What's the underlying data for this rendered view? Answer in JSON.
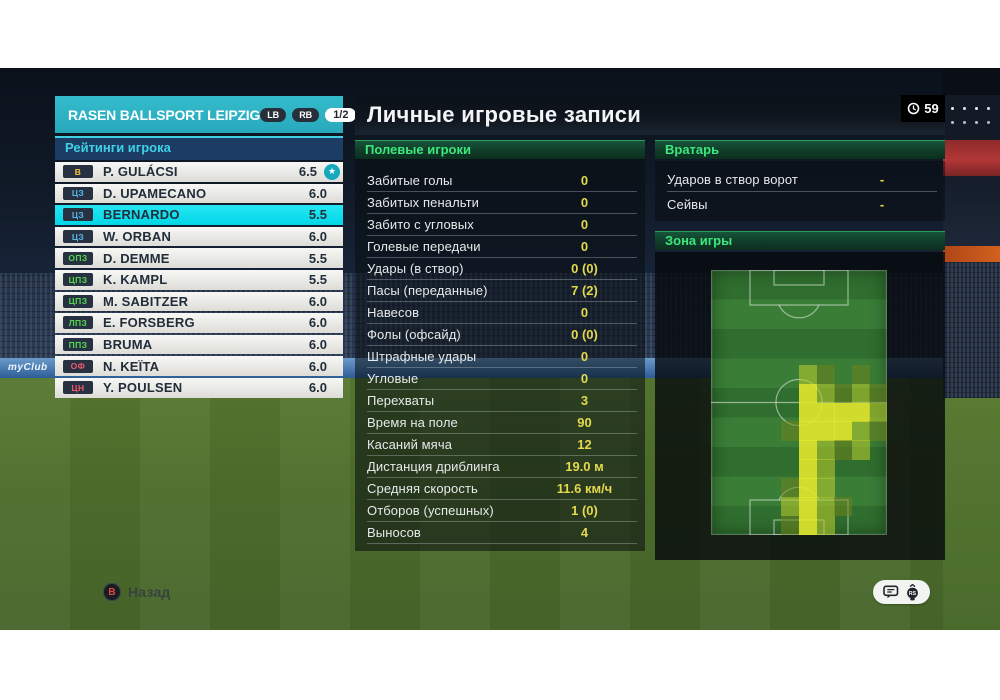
{
  "team_header": {
    "name": "RASEN BALLSPORT LEIPZIG",
    "prev_button": "LB",
    "next_button": "RB",
    "page_indicator": "1/2"
  },
  "ratings_panel": {
    "title": "Рейтинги игрока",
    "players": [
      {
        "pos": "В",
        "pos_color": "#f5c842",
        "name": "P. GULÁCSI",
        "rating": "6.5",
        "star": true
      },
      {
        "pos": "ЦЗ",
        "pos_color": "#56b8e8",
        "name": "D. UPAMECANO",
        "rating": "6.0"
      },
      {
        "pos": "ЦЗ",
        "pos_color": "#56b8e8",
        "name": "BERNARDO",
        "rating": "5.5",
        "selected": true
      },
      {
        "pos": "ЦЗ",
        "pos_color": "#56b8e8",
        "name": "W. ORBAN",
        "rating": "6.0"
      },
      {
        "pos": "ОПЗ",
        "pos_color": "#55d84e",
        "name": "D. DEMME",
        "rating": "5.5"
      },
      {
        "pos": "ЦПЗ",
        "pos_color": "#55d84e",
        "name": "K. KAMPL",
        "rating": "5.5"
      },
      {
        "pos": "ЦПЗ",
        "pos_color": "#55d84e",
        "name": "M. SABITZER",
        "rating": "6.0"
      },
      {
        "pos": "ЛПЗ",
        "pos_color": "#55d84e",
        "name": "E. FORSBERG",
        "rating": "6.0"
      },
      {
        "pos": "ППЗ",
        "pos_color": "#55d84e",
        "name": "BRUMA",
        "rating": "6.0"
      },
      {
        "pos": "ОФ",
        "pos_color": "#f2586e",
        "name": "N. KEÏTA",
        "rating": "6.0"
      },
      {
        "pos": "ЦН",
        "pos_color": "#f2586e",
        "name": "Y. POULSEN",
        "rating": "6.0"
      }
    ]
  },
  "screen": {
    "title": "Личные игровые записи",
    "match_minute": "59"
  },
  "field_stats": {
    "title": "Полевые игроки",
    "rows": [
      {
        "label": "Забитые голы",
        "value": "0"
      },
      {
        "label": "Забитых пенальти",
        "value": "0"
      },
      {
        "label": "Забито с угловых",
        "value": "0"
      },
      {
        "label": "Голевые передачи",
        "value": "0"
      },
      {
        "label": "Удары (в створ)",
        "value": "0 (0)"
      },
      {
        "label": "Пасы (переданные)",
        "value": "7 (2)"
      },
      {
        "label": "Навесов",
        "value": "0"
      },
      {
        "label": "Фолы (офсайд)",
        "value": "0 (0)"
      },
      {
        "label": "Штрафные удары",
        "value": "0"
      },
      {
        "label": "Угловые",
        "value": "0"
      },
      {
        "label": "Перехваты",
        "value": "3"
      },
      {
        "label": "Время на поле",
        "value": "90"
      },
      {
        "label": "Касаний мяча",
        "value": "12"
      },
      {
        "label": "Дистанция дриблинга",
        "value": "19.0 м"
      },
      {
        "label": "Средняя скорость",
        "value": "11.6 км/ч"
      },
      {
        "label": "Отборов (успешных)",
        "value": "1 (0)"
      },
      {
        "label": "Выносов",
        "value": "4"
      }
    ]
  },
  "goalkeeper_stats": {
    "title": "Вратарь",
    "rows": [
      {
        "label": "Ударов в створ ворот",
        "value": "-"
      },
      {
        "label": "Сейвы",
        "value": "-"
      }
    ]
  },
  "zone": {
    "title": "Зона игры",
    "heatmap_grid": {
      "cols": 10,
      "rows": 14
    },
    "heatmap_cells": [
      {
        "c": 5,
        "r": 5,
        "v": 2
      },
      {
        "c": 6,
        "r": 5,
        "v": 1
      },
      {
        "c": 8,
        "r": 5,
        "v": 1
      },
      {
        "c": 5,
        "r": 6,
        "v": 3
      },
      {
        "c": 6,
        "r": 6,
        "v": 2
      },
      {
        "c": 7,
        "r": 6,
        "v": 1
      },
      {
        "c": 8,
        "r": 6,
        "v": 2
      },
      {
        "c": 9,
        "r": 6,
        "v": 1
      },
      {
        "c": 5,
        "r": 7,
        "v": 3
      },
      {
        "c": 6,
        "r": 7,
        "v": 3
      },
      {
        "c": 7,
        "r": 7,
        "v": 3
      },
      {
        "c": 8,
        "r": 7,
        "v": 3
      },
      {
        "c": 9,
        "r": 7,
        "v": 2
      },
      {
        "c": 4,
        "r": 8,
        "v": 1
      },
      {
        "c": 5,
        "r": 8,
        "v": 3
      },
      {
        "c": 6,
        "r": 8,
        "v": 3
      },
      {
        "c": 7,
        "r": 8,
        "v": 3
      },
      {
        "c": 8,
        "r": 8,
        "v": 2
      },
      {
        "c": 9,
        "r": 8,
        "v": 1
      },
      {
        "c": 5,
        "r": 9,
        "v": 3
      },
      {
        "c": 6,
        "r": 9,
        "v": 2
      },
      {
        "c": 7,
        "r": 9,
        "v": 1
      },
      {
        "c": 8,
        "r": 9,
        "v": 2
      },
      {
        "c": 5,
        "r": 10,
        "v": 3
      },
      {
        "c": 6,
        "r": 10,
        "v": 2
      },
      {
        "c": 4,
        "r": 11,
        "v": 1
      },
      {
        "c": 5,
        "r": 11,
        "v": 3
      },
      {
        "c": 6,
        "r": 11,
        "v": 2
      },
      {
        "c": 4,
        "r": 12,
        "v": 2
      },
      {
        "c": 5,
        "r": 12,
        "v": 3
      },
      {
        "c": 6,
        "r": 12,
        "v": 2
      },
      {
        "c": 7,
        "r": 12,
        "v": 1
      },
      {
        "c": 4,
        "r": 13,
        "v": 1
      },
      {
        "c": 5,
        "r": 13,
        "v": 3
      },
      {
        "c": 6,
        "r": 13,
        "v": 2
      }
    ]
  },
  "footer": {
    "back_label": "Назад",
    "back_button": "B",
    "right_stick_label": "RS"
  },
  "adboard": {
    "text": "myClub"
  },
  "colors": {
    "team_header_teal": "#2bafc1",
    "selected_row_cyan": "#0adfef",
    "ratings_title_cyan": "#3dd2e6",
    "section_green": "#3de87c",
    "stat_value_yellow": "#e3d84e",
    "heat_bright": "#e2e72d",
    "heat_medium": "#b4c82d",
    "heat_dark": "#6e841e"
  }
}
